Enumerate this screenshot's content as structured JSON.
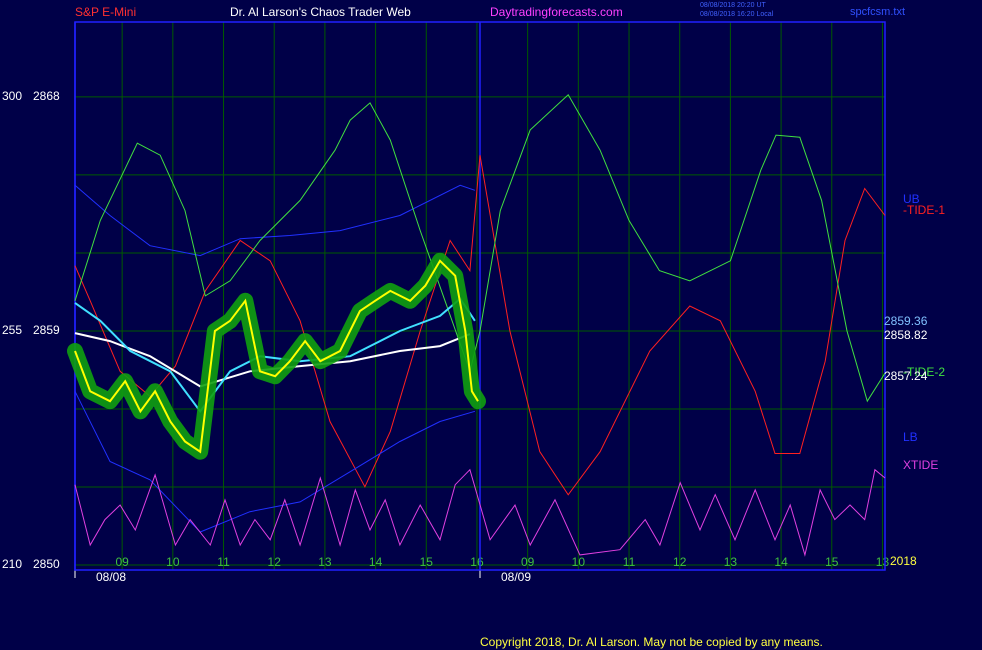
{
  "chart_data": {
    "type": "line",
    "title": "Dr. Al Larson's Chaos Trader Web",
    "symbol": "S&P E-Mini",
    "site": "Daytradingforecasts.com",
    "timestamps": [
      "08/08/2018 20:20 UT",
      "08/08/2018 16:20 Local"
    ],
    "file": "spcfcsm.txt",
    "year": "2018",
    "copyright": "Copyright 2018, Dr. Al Larson. May not be copied by any means.",
    "xlim": [
      -0.93,
      15.05
    ],
    "xticks": [
      {
        "value": 0,
        "label": "09"
      },
      {
        "value": 1,
        "label": "10"
      },
      {
        "value": 2,
        "label": "11"
      },
      {
        "value": 3,
        "label": "12"
      },
      {
        "value": 4,
        "label": "13"
      },
      {
        "value": 5,
        "label": "14"
      },
      {
        "value": 6,
        "label": "15"
      },
      {
        "value": 7,
        "label": "16"
      },
      {
        "value": 8,
        "label": "09"
      },
      {
        "value": 9,
        "label": "10"
      },
      {
        "value": 10,
        "label": "11"
      },
      {
        "value": 11,
        "label": "12"
      },
      {
        "value": 12,
        "label": "13"
      },
      {
        "value": 13,
        "label": "14"
      },
      {
        "value": 14,
        "label": "15"
      },
      {
        "value": 15,
        "label": "13"
      }
    ],
    "dates": [
      {
        "value": -0.93,
        "label": "08/08"
      },
      {
        "value": 7.06,
        "label": "08/09"
      }
    ],
    "ylim": [
      2849.81,
      2870.88
    ],
    "yticks": [
      2850,
      2859,
      2868
    ],
    "ygrid": [
      2850,
      2853,
      2856,
      2859,
      2862,
      2865,
      2868
    ],
    "y2lim": [
      209.0,
      314.4
    ],
    "y2ticks": [
      210,
      255,
      300
    ],
    "grid": true,
    "series": [
      {
        "name": "UB",
        "color": "#2030ff",
        "x": [
          -0.93,
          -0.24,
          0.55,
          1.54,
          2.33,
          3.31,
          4.3,
          5.48,
          6.67,
          6.96
        ],
        "values": [
          2864.6,
          2863.44,
          2862.28,
          2861.9,
          2862.55,
          2862.67,
          2862.86,
          2863.44,
          2864.6,
          2864.41
        ]
      },
      {
        "name": "-TIDE-1",
        "color": "#ff2020",
        "x": [
          -0.93,
          -0.63,
          -0.04,
          0.55,
          1.05,
          1.64,
          2.33,
          2.92,
          3.51,
          4.1,
          4.79,
          5.29,
          5.88,
          6.47,
          6.86,
          7.06,
          7.65,
          8.24,
          8.8,
          9.43,
          10.41,
          11.2,
          11.8,
          12.49,
          12.88,
          13.37,
          13.87,
          14.26,
          14.65,
          15.05
        ],
        "values": [
          2861.51,
          2860.16,
          2857.45,
          2856.49,
          2857.65,
          2860.54,
          2862.48,
          2861.7,
          2859.39,
          2855.52,
          2853.01,
          2855.14,
          2859.0,
          2862.48,
          2861.32,
          2865.76,
          2859.0,
          2854.36,
          2852.7,
          2854.36,
          2858.23,
          2859.96,
          2859.39,
          2856.68,
          2854.29,
          2854.29,
          2857.84,
          2862.48,
          2864.48,
          2863.44
        ]
      },
      {
        "name": "-TIDE-2",
        "color": "#40e040",
        "x": [
          -0.93,
          -0.43,
          0.3,
          0.75,
          1.24,
          1.64,
          2.13,
          2.72,
          3.51,
          4.2,
          4.5,
          4.89,
          5.29,
          5.88,
          6.37,
          6.86,
          7.06,
          7.46,
          8.05,
          8.8,
          9.43,
          10.0,
          10.6,
          11.2,
          12.0,
          12.6,
          12.9,
          13.37,
          13.8,
          14.3,
          14.7,
          15.05
        ],
        "values": [
          2860.16,
          2863.25,
          2866.22,
          2865.76,
          2863.63,
          2860.35,
          2860.93,
          2862.48,
          2864.02,
          2865.95,
          2867.11,
          2867.77,
          2866.34,
          2862.86,
          2860.16,
          2857.45,
          2859.0,
          2863.63,
          2866.73,
          2868.08,
          2865.95,
          2863.25,
          2861.32,
          2860.93,
          2861.7,
          2865.18,
          2866.53,
          2866.45,
          2864.02,
          2859.0,
          2856.3,
          2857.38
        ]
      },
      {
        "name": "LB",
        "color": "#2030ff",
        "x": [
          -0.93,
          -0.24,
          0.55,
          1.54,
          2.52,
          3.51,
          4.5,
          5.48,
          6.27,
          6.96
        ],
        "values": [
          2856.68,
          2853.98,
          2853.28,
          2851.27,
          2852.05,
          2852.43,
          2853.59,
          2854.75,
          2855.52,
          2855.91
        ]
      },
      {
        "name": "XTIDE",
        "color": "#e040e0",
        "axis": "y2",
        "x": [
          -0.93,
          -0.63,
          -0.34,
          -0.04,
          0.26,
          0.65,
          1.05,
          1.34,
          1.74,
          2.03,
          2.33,
          2.62,
          2.92,
          3.21,
          3.51,
          3.91,
          4.3,
          4.6,
          4.89,
          5.19,
          5.48,
          5.88,
          6.27,
          6.57,
          6.86,
          7.26,
          7.75,
          8.05,
          8.54,
          9.03,
          9.82,
          10.32,
          10.61,
          11.01,
          11.4,
          11.7,
          12.09,
          12.49,
          12.88,
          13.18,
          13.47,
          13.77,
          14.06,
          14.36,
          14.65,
          14.85,
          15.05
        ],
        "values": [
          225.4,
          213.8,
          218.7,
          221.5,
          216.7,
          227.3,
          213.8,
          218.7,
          213.8,
          222.5,
          213.8,
          218.7,
          214.8,
          222.5,
          213.8,
          226.7,
          213.8,
          224.4,
          216.7,
          222.5,
          213.8,
          221.5,
          214.8,
          225.4,
          228.3,
          214.8,
          221.5,
          213.8,
          222.5,
          211.9,
          212.9,
          218.7,
          213.8,
          225.8,
          216.7,
          223.5,
          214.8,
          224.4,
          214.8,
          221.5,
          211.9,
          224.4,
          218.7,
          221.5,
          218.7,
          228.3,
          226.7
        ]
      },
      {
        "color": "#ffffff",
        "last_value": 2858.82,
        "x": [
          -0.93,
          -0.24,
          0.55,
          1.54,
          2.52,
          3.51,
          4.5,
          5.48,
          6.27,
          6.86
        ],
        "values": [
          2858.92,
          2858.61,
          2858.03,
          2856.87,
          2857.45,
          2857.65,
          2857.84,
          2858.23,
          2858.42,
          2858.88
        ]
      },
      {
        "color": "#40e0ff",
        "last_value": 2859.36,
        "x": [
          -0.93,
          -0.43,
          0.16,
          0.95,
          1.54,
          2.13,
          2.72,
          3.51,
          4.5,
          5.48,
          6.27,
          6.67,
          6.96
        ],
        "values": [
          2860.08,
          2859.39,
          2858.23,
          2857.45,
          2855.91,
          2857.45,
          2858.03,
          2857.84,
          2858.03,
          2859.0,
          2859.58,
          2860.24,
          2859.39
        ]
      },
      {
        "color": "#ffff00",
        "last_value": 2857.24,
        "x": [
          -0.93,
          -0.63,
          -0.24,
          0.06,
          0.36,
          0.65,
          0.95,
          1.24,
          1.54,
          1.83,
          2.13,
          2.43,
          2.72,
          3.02,
          3.31,
          3.61,
          3.91,
          4.3,
          4.69,
          4.99,
          5.29,
          5.68,
          5.98,
          6.27,
          6.57,
          6.77,
          6.9,
          7.02
        ],
        "values": [
          2858.23,
          2856.68,
          2856.3,
          2857.07,
          2855.91,
          2856.68,
          2855.52,
          2854.75,
          2854.36,
          2859.0,
          2859.39,
          2860.16,
          2857.45,
          2857.26,
          2857.84,
          2858.61,
          2857.84,
          2858.23,
          2859.77,
          2860.16,
          2860.54,
          2860.16,
          2860.74,
          2861.7,
          2861.12,
          2859.0,
          2856.68,
          2856.3
        ]
      }
    ]
  }
}
